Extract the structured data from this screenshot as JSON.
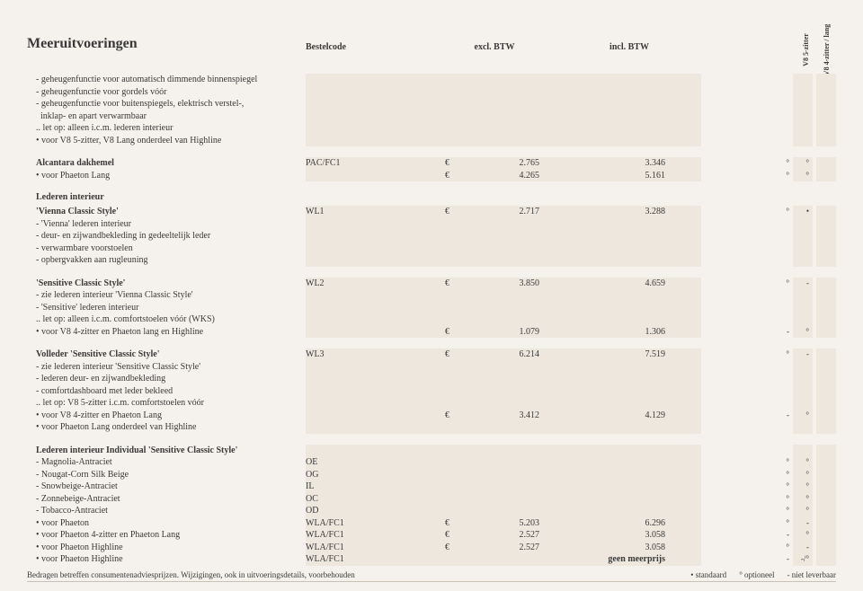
{
  "header": {
    "title": "Meeruitvoeringen",
    "col_bestelcode": "Bestelcode",
    "col_excl": "excl. BTW",
    "col_incl": "incl. BTW",
    "variant1": "V8 5-zitter",
    "variant2": "V8 4-zitter / lang"
  },
  "block1": {
    "lines": [
      "- geheugenfunctie voor automatisch dimmende binnenspiegel",
      "- geheugenfunctie voor gordels vóór",
      "- geheugenfunctie voor buitenspiegels, elektrisch verstel-,",
      "  inklap- en apart verwarmbaar",
      ".. let op: alleen i.c.m. lederen interieur",
      "• voor V8 5-zitter, V8 Lang onderdeel van Highline"
    ]
  },
  "block2": {
    "r1": {
      "desc": "Alcantara dakhemel",
      "code": "PAC/FC1",
      "sym": "€",
      "excl": "2.765",
      "incl": "3.346",
      "m1": "°",
      "m2": "°"
    },
    "r2": {
      "desc": "• voor Phaeton Lang",
      "code": "",
      "sym": "€",
      "excl": "4.265",
      "incl": "5.161",
      "m1": "°",
      "m2": "°"
    }
  },
  "subhead1": "Lederen interieur",
  "block3": {
    "r1": {
      "desc": "'Vienna Classic Style'",
      "code": "WL1",
      "sym": "€",
      "excl": "2.717",
      "incl": "3.288",
      "m1": "°",
      "m2": "•"
    },
    "lines": [
      "- 'Vienna' lederen interieur",
      "- deur- en zijwandbekleding in gedeeltelijk leder",
      "- verwarmbare voorstoelen",
      "- opbergvakken aan rugleuning"
    ]
  },
  "block4": {
    "r1": {
      "desc": "'Sensitive Classic Style'",
      "code": "WL2",
      "sym": "€",
      "excl": "3.850",
      "incl": "4.659",
      "m1": "°",
      "m2": "-"
    },
    "lines": [
      "- zie lederen interieur 'Vienna Classic Style'",
      "- 'Sensitive' lederen interieur",
      ".. let op: alleen i.c.m. comfortstoelen vóór (WKS)"
    ],
    "r2": {
      "desc": "• voor V8 4-zitter en Phaeton lang en Highline",
      "code": "",
      "sym": "€",
      "excl": "1.079",
      "incl": "1.306",
      "m1": "-",
      "m2": "°"
    }
  },
  "block5": {
    "r1": {
      "desc": "Volleder 'Sensitive Classic Style'",
      "code": "WL3",
      "sym": "€",
      "excl": "6.214",
      "incl": "7.519",
      "m1": "°",
      "m2": "-"
    },
    "lines": [
      "- zie lederen interieur 'Sensitive Classic Style'",
      "- lederen deur- en zijwandbekleding",
      "- comfortdashboard met leder bekleed",
      ".. let op: V8 5-zitter i.c.m. comfortstoelen vóór"
    ],
    "r2": {
      "desc": "• voor V8 4-zitter en Phaeton Lang",
      "code": "",
      "sym": "€",
      "excl": "3.412",
      "incl": "4.129",
      "m1": "-",
      "m2": "°"
    },
    "r3": {
      "desc": "• voor Phaeton Lang onderdeel van Highline",
      "code": "",
      "sym": "",
      "excl": "",
      "incl": "",
      "m1": "",
      "m2": ""
    }
  },
  "block6": {
    "head": "Lederen interieur Individual 'Sensitive Classic Style'",
    "r1": {
      "desc": "- Magnolia-Antraciet",
      "code": "OE",
      "sym": "",
      "excl": "",
      "incl": "",
      "m1": "°",
      "m2": "°"
    },
    "r2": {
      "desc": "- Nougat-Corn Silk Beige",
      "code": "OG",
      "sym": "",
      "excl": "",
      "incl": "",
      "m1": "°",
      "m2": "°"
    },
    "r3": {
      "desc": "- Snowbeige-Antraciet",
      "code": "IL",
      "sym": "",
      "excl": "",
      "incl": "",
      "m1": "°",
      "m2": "°"
    },
    "r4": {
      "desc": "- Zonnebeige-Antraciet",
      "code": "OC",
      "sym": "",
      "excl": "",
      "incl": "",
      "m1": "°",
      "m2": "°"
    },
    "r5": {
      "desc": "- Tobacco-Antraciet",
      "code": "OD",
      "sym": "",
      "excl": "",
      "incl": "",
      "m1": "°",
      "m2": "°"
    },
    "r6": {
      "desc": "• voor Phaeton",
      "code": "WLA/FC1",
      "sym": "€",
      "excl": "5.203",
      "incl": "6.296",
      "m1": "°",
      "m2": "-"
    },
    "r7": {
      "desc": "• voor Phaeton 4-zitter en Phaeton Lang",
      "code": "WLA/FC1",
      "sym": "€",
      "excl": "2.527",
      "incl": "3.058",
      "m1": "-",
      "m2": "°"
    },
    "r8": {
      "desc": "• voor Phaeton Highline",
      "code": "WLA/FC1",
      "sym": "€",
      "excl": "2.527",
      "incl": "3.058",
      "m1": "°",
      "m2": "-"
    },
    "r9": {
      "desc": "• voor Phaeton Highline",
      "code": "WLA/FC1",
      "sym": "",
      "excl": "",
      "incl": "geen meerprijs",
      "m1": "-",
      "m2": "-/°"
    }
  },
  "footer": {
    "left": "Bedragen betreffen consumentenadviesprijzen. Wijzigingen, ook in uitvoeringsdetails, voorbehouden",
    "l1": "• standaard",
    "l2": "° optioneel",
    "l3": "- niet leverbaar"
  }
}
